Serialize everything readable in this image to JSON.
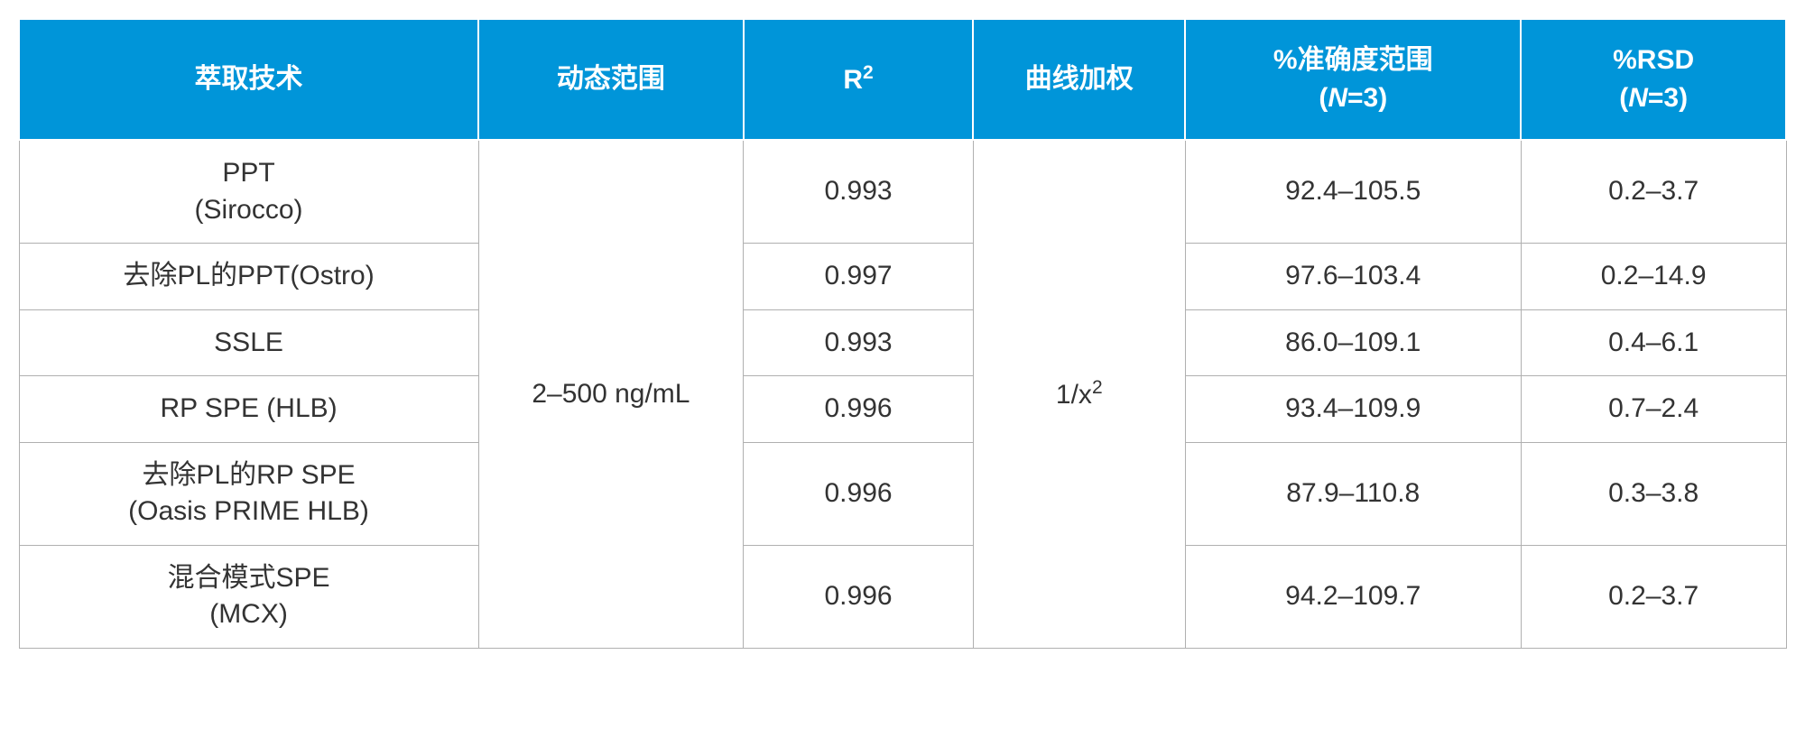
{
  "table": {
    "header_bg": "#0095d9",
    "header_fg": "#ffffff",
    "cell_bg": "#ffffff",
    "cell_fg": "#333333",
    "border_color": "#b0b0b0",
    "header_fontsize": 30,
    "cell_fontsize": 30,
    "columns": {
      "tech": "萃取技术",
      "range": "动态范围",
      "r2_html": "R<sup>2</sup>",
      "weight": "曲线加权",
      "accuracy_line1": "%准确度范围",
      "accuracy_line2_html": "(<span class=\"italic\">N</span>=3)",
      "rsd_line1": "%RSD",
      "rsd_line2_html": "(<span class=\"italic\">N</span>=3)"
    },
    "dynamic_range": "2–500 ng/mL",
    "curve_weight_html": "1/x<sup>2</sup>",
    "rows": [
      {
        "tech_line1": "PPT",
        "tech_line2": "(Sirocco)",
        "r2": "0.993",
        "accuracy": "92.4–105.5",
        "rsd": "0.2–3.7"
      },
      {
        "tech_line1": "去除PL的PPT(Ostro)",
        "tech_line2": "",
        "r2": "0.997",
        "accuracy": "97.6–103.4",
        "rsd": "0.2–14.9"
      },
      {
        "tech_line1": "SSLE",
        "tech_line2": "",
        "r2": "0.993",
        "accuracy": "86.0–109.1",
        "rsd": "0.4–6.1"
      },
      {
        "tech_line1": "RP SPE (HLB)",
        "tech_line2": "",
        "r2": "0.996",
        "accuracy": "93.4–109.9",
        "rsd": "0.7–2.4"
      },
      {
        "tech_line1": "去除PL的RP SPE",
        "tech_line2": "(Oasis PRIME HLB)",
        "r2": "0.996",
        "accuracy": "87.9–110.8",
        "rsd": "0.3–3.8"
      },
      {
        "tech_line1": "混合模式SPE",
        "tech_line2": "(MCX)",
        "r2": "0.996",
        "accuracy": "94.2–109.7",
        "rsd": "0.2–3.7"
      }
    ]
  }
}
